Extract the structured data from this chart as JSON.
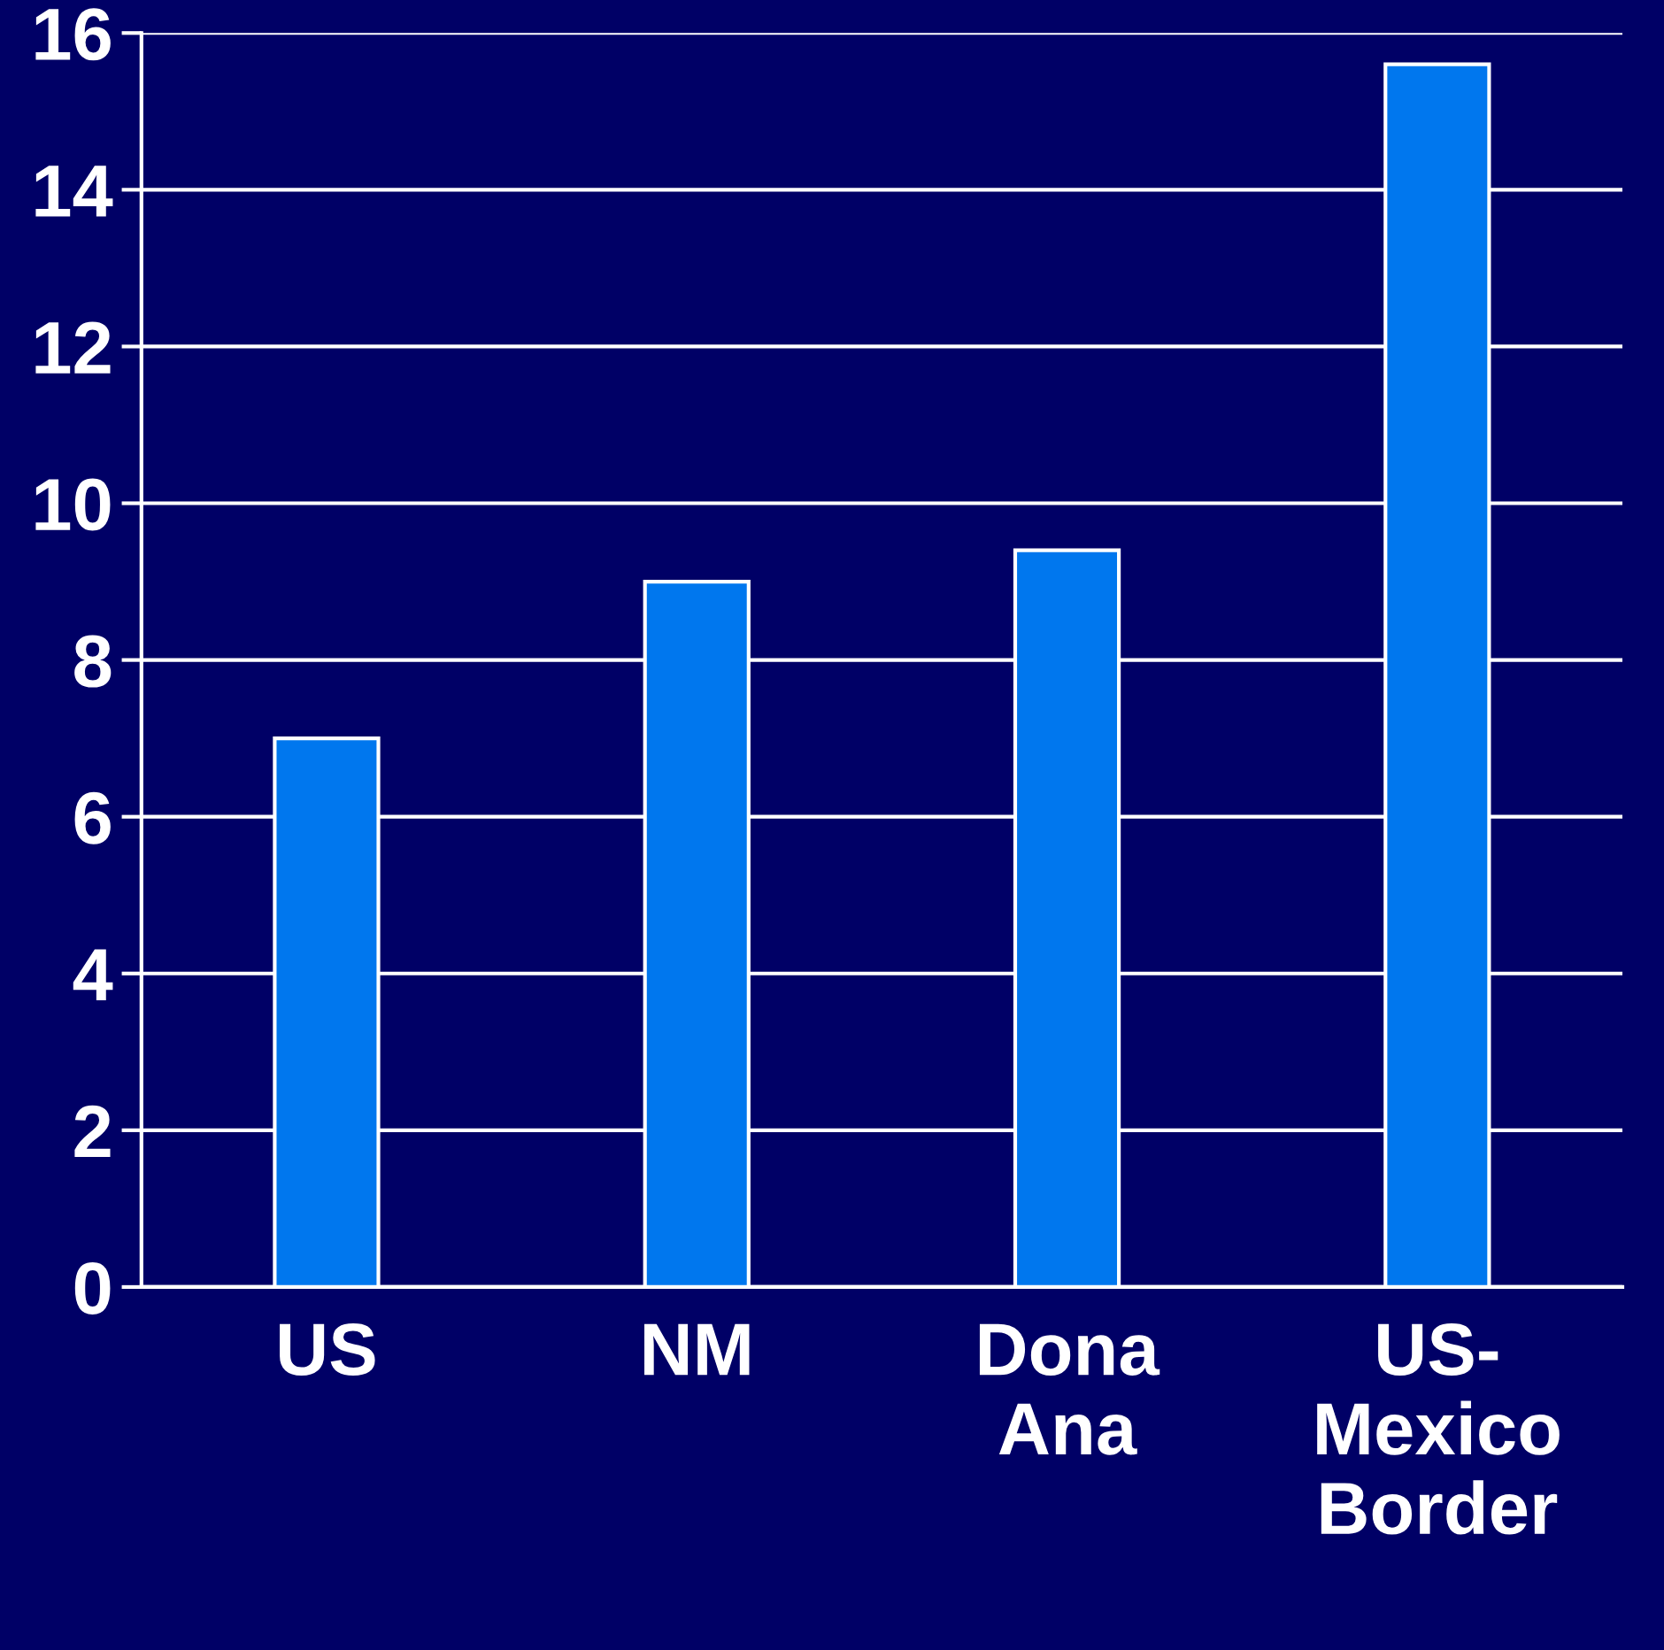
{
  "chart_data": {
    "type": "bar",
    "categories": [
      "US",
      "NM",
      "Dona\nAna",
      "US-\nMexico\nBorder"
    ],
    "values": [
      7,
      9,
      9.4,
      15.6
    ],
    "color": "#0077ee",
    "ylim": [
      0,
      16
    ],
    "yticks": [
      0,
      2,
      4,
      6,
      8,
      10,
      12,
      14,
      16
    ],
    "grid": "y"
  }
}
